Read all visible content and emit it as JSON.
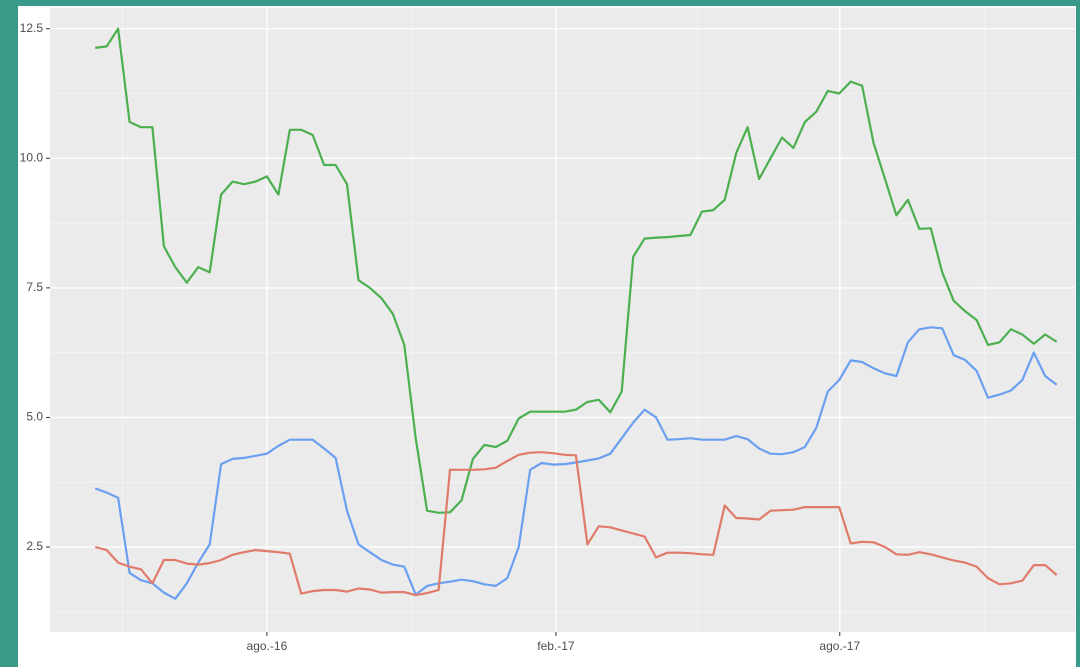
{
  "chart_data": {
    "type": "line",
    "x": [
      2016.28,
      2016.3,
      2016.32,
      2016.34,
      2016.36,
      2016.38,
      2016.4,
      2016.42,
      2016.44,
      2016.46,
      2016.48,
      2016.5,
      2016.52,
      2016.54,
      2016.56,
      2016.58,
      2016.6,
      2016.62,
      2016.64,
      2016.66,
      2016.68,
      2016.7,
      2016.72,
      2016.74,
      2016.76,
      2016.78,
      2016.8,
      2016.82,
      2016.84,
      2016.86,
      2016.88,
      2016.9,
      2016.92,
      2016.94,
      2016.96,
      2016.98,
      2017.0,
      2017.02,
      2017.04,
      2017.06,
      2017.08,
      2017.1,
      2017.12,
      2017.14,
      2017.16,
      2017.18,
      2017.2,
      2017.22,
      2017.24,
      2017.26,
      2017.28,
      2017.3,
      2017.32,
      2017.34,
      2017.36,
      2017.38,
      2017.4,
      2017.42,
      2017.44,
      2017.46,
      2017.48,
      2017.5,
      2017.52,
      2017.54,
      2017.56,
      2017.58,
      2017.6,
      2017.62,
      2017.64,
      2017.66,
      2017.68,
      2017.7,
      2017.72,
      2017.74,
      2017.76,
      2017.78,
      2017.8,
      2017.82,
      2017.84,
      2017.86,
      2017.88,
      2017.9,
      2017.92,
      2017.94,
      2017.96
    ],
    "series": [
      {
        "color": "#4caf50",
        "values": [
          12.13,
          12.16,
          12.5,
          10.7,
          10.6,
          10.6,
          8.3,
          7.9,
          7.6,
          7.9,
          7.8,
          9.3,
          9.55,
          9.5,
          9.55,
          9.65,
          9.3,
          10.55,
          10.55,
          10.45,
          9.87,
          9.87,
          9.5,
          7.65,
          7.5,
          7.3,
          7.0,
          6.4,
          4.6,
          3.2,
          3.16,
          3.17,
          3.4,
          4.2,
          4.47,
          4.43,
          4.55,
          4.98,
          5.11,
          5.11,
          5.11,
          5.11,
          5.15,
          5.3,
          5.34,
          5.1,
          5.5,
          8.1,
          8.45,
          8.47,
          8.48,
          8.5,
          8.52,
          8.97,
          9.0,
          9.2,
          10.1,
          10.6,
          9.6,
          10.0,
          10.4,
          10.2,
          10.7,
          10.9,
          11.3,
          11.25,
          11.48,
          11.4,
          10.3,
          9.6,
          8.9,
          9.2,
          8.64,
          8.65,
          7.8,
          7.25,
          7.05,
          6.88,
          6.4,
          6.45,
          6.7,
          6.6,
          6.42,
          6.6,
          6.46
        ]
      },
      {
        "color": "#6b9ff0",
        "values": [
          3.63,
          3.55,
          3.45,
          2.0,
          1.86,
          1.8,
          1.62,
          1.5,
          1.8,
          2.2,
          2.55,
          4.1,
          4.2,
          4.22,
          4.26,
          4.3,
          4.45,
          4.57,
          4.57,
          4.57,
          4.4,
          4.22,
          3.2,
          2.55,
          2.4,
          2.25,
          2.16,
          2.12,
          1.58,
          1.75,
          1.8,
          1.83,
          1.87,
          1.84,
          1.78,
          1.75,
          1.9,
          2.5,
          3.99,
          4.12,
          4.09,
          4.1,
          4.13,
          4.17,
          4.21,
          4.3,
          4.6,
          4.9,
          5.15,
          5.0,
          4.57,
          4.58,
          4.6,
          4.57,
          4.57,
          4.57,
          4.64,
          4.58,
          4.4,
          4.3,
          4.29,
          4.33,
          4.43,
          4.8,
          5.5,
          5.72,
          6.1,
          6.07,
          5.95,
          5.85,
          5.8,
          6.45,
          6.7,
          6.74,
          6.72,
          6.2,
          6.11,
          5.9,
          5.38,
          5.44,
          5.52,
          5.72,
          6.25,
          5.8,
          5.63
        ]
      },
      {
        "color": "#e07b6a",
        "values": [
          2.5,
          2.44,
          2.2,
          2.12,
          2.07,
          1.8,
          2.25,
          2.25,
          2.18,
          2.16,
          2.19,
          2.25,
          2.35,
          2.4,
          2.44,
          2.42,
          2.4,
          2.37,
          1.6,
          1.65,
          1.67,
          1.67,
          1.64,
          1.7,
          1.68,
          1.62,
          1.63,
          1.63,
          1.57,
          1.61,
          1.67,
          3.99,
          3.99,
          3.99,
          4.0,
          4.03,
          4.16,
          4.28,
          4.32,
          4.33,
          4.31,
          4.28,
          4.27,
          2.55,
          2.9,
          2.88,
          2.82,
          2.76,
          2.7,
          2.3,
          2.39,
          2.39,
          2.38,
          2.36,
          2.35,
          3.3,
          3.06,
          3.05,
          3.03,
          3.2,
          3.21,
          3.22,
          3.27,
          3.27,
          3.27,
          3.27,
          2.57,
          2.6,
          2.59,
          2.5,
          2.36,
          2.35,
          2.4,
          2.36,
          2.3,
          2.24,
          2.2,
          2.12,
          1.9,
          1.78,
          1.8,
          1.85,
          2.15,
          2.15,
          1.96
        ]
      }
    ],
    "xlim": [
      2016.201,
      2017.992
    ],
    "xticks": [
      {
        "value": 2016.58,
        "label": "ago.-16"
      },
      {
        "value": 2017.085,
        "label": "feb.-17"
      },
      {
        "value": 2017.581,
        "label": "ago.-17"
      }
    ],
    "ylim": [
      0.86,
      12.9
    ],
    "yticks": [
      {
        "value": 2.5,
        "label": "2.5"
      },
      {
        "value": 5,
        "label": "5.0"
      },
      {
        "value": 7.5,
        "label": "7.5"
      },
      {
        "value": 10,
        "label": "10.0"
      },
      {
        "value": 12.5,
        "label": "12.5"
      }
    ],
    "grid": true
  }
}
